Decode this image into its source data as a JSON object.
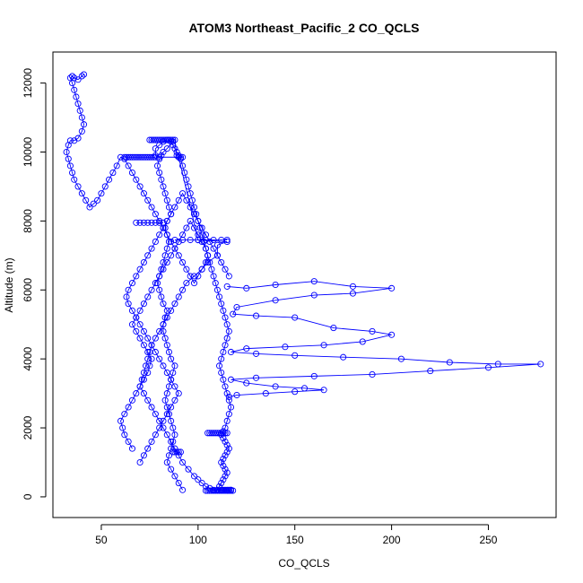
{
  "chart_data": {
    "type": "scatter",
    "title": "ATOM3 Northeast_Pacific_2 CO_QCLS",
    "xlabel": "CO_QCLS",
    "ylabel": "Altitude (m)",
    "xlim": [
      25,
      285
    ],
    "ylim": [
      -600,
      12900
    ],
    "xticks": [
      50,
      100,
      150,
      200,
      250
    ],
    "yticks": [
      0,
      2000,
      4000,
      6000,
      8000,
      10000,
      12000
    ],
    "grid": false,
    "legend": "none",
    "color": "#0000ff",
    "marker": "open-circle",
    "connected": true,
    "series": [
      {
        "x": [
          92,
          90,
          88,
          86,
          84,
          85,
          86,
          87,
          88,
          87,
          86,
          85,
          84,
          83,
          84,
          85,
          86,
          87,
          88,
          86,
          85,
          84,
          83,
          82,
          82,
          83,
          84,
          82,
          81,
          80,
          79,
          80,
          81,
          82,
          83,
          84,
          85,
          84,
          83,
          84,
          86,
          85,
          84,
          83,
          82,
          81,
          80,
          79,
          80,
          81,
          82,
          84,
          87,
          84,
          82,
          80,
          78,
          78,
          80,
          90,
          100,
          115,
          110,
          110,
          105,
          102,
          98,
          94,
          92,
          90,
          88,
          86,
          84,
          82,
          80,
          78,
          76,
          75,
          74,
          73,
          72,
          71,
          70,
          72,
          74,
          76,
          78,
          80,
          82,
          84,
          86,
          88,
          90,
          92,
          95,
          98,
          100,
          102,
          104,
          106,
          108,
          110,
          112,
          113,
          114,
          115,
          116,
          117,
          117
        ],
        "y": [
          200,
          400,
          600,
          800,
          1000,
          1200,
          1400,
          1600,
          1800,
          2000,
          2200,
          2400,
          2600,
          2800,
          3000,
          3200,
          3400,
          3600,
          3800,
          4000,
          4200,
          4400,
          4600,
          4800,
          5000,
          5200,
          5400,
          5600,
          5800,
          6000,
          6200,
          6400,
          6600,
          6800,
          7000,
          7200,
          7400,
          7600,
          7800,
          8000,
          8200,
          8400,
          8600,
          8800,
          9000,
          9200,
          9400,
          9600,
          9800,
          9900,
          10000,
          10100,
          10300,
          10350,
          10300,
          10200,
          10100,
          9900,
          9850,
          9850,
          7450,
          7400,
          7300,
          7000,
          6800,
          6600,
          6400,
          6200,
          6000,
          5800,
          5600,
          5400,
          5200,
          5000,
          4800,
          4600,
          4400,
          4200,
          4000,
          3800,
          3600,
          3400,
          3200,
          3000,
          2800,
          2600,
          2400,
          2200,
          2000,
          1800,
          1600,
          1400,
          1200,
          1000,
          800,
          600,
          500,
          400,
          300,
          250,
          200,
          200,
          200,
          200,
          200,
          200,
          200,
          200,
          200
        ]
      },
      {
        "x": [
          66,
          64,
          62,
          61,
          60,
          62,
          64,
          66,
          68,
          70,
          72,
          74,
          75,
          76,
          74,
          72,
          70,
          68,
          66,
          68,
          70,
          72,
          74,
          76,
          78,
          80,
          82,
          84,
          86,
          88,
          90,
          92,
          94,
          96,
          98,
          100,
          102,
          104,
          105,
          104,
          102,
          100,
          98,
          96,
          94,
          92,
          90,
          88,
          86,
          84,
          82,
          80,
          78,
          76,
          74,
          72,
          70,
          68,
          66,
          64,
          62,
          60,
          58,
          56,
          54,
          52,
          50,
          48,
          46,
          44,
          42,
          40,
          38,
          36,
          35,
          34,
          33,
          32,
          33,
          34,
          36,
          38,
          40,
          41,
          40,
          39,
          38,
          37,
          36,
          35,
          34,
          35,
          36,
          38,
          40,
          41
        ],
        "y": [
          1400,
          1600,
          1800,
          2000,
          2200,
          2400,
          2600,
          2800,
          3000,
          3200,
          3400,
          3600,
          3800,
          4000,
          4200,
          4400,
          4600,
          4800,
          5000,
          5200,
          5400,
          5600,
          5800,
          6000,
          6200,
          6400,
          6600,
          6800,
          7000,
          7200,
          7400,
          7600,
          7800,
          8000,
          7800,
          7600,
          7400,
          7200,
          7000,
          6800,
          6600,
          6400,
          6200,
          6400,
          6600,
          6800,
          7000,
          7200,
          7400,
          7600,
          7800,
          8000,
          8200,
          8400,
          8600,
          8800,
          9000,
          9200,
          9400,
          9600,
          9800,
          9850,
          9600,
          9400,
          9200,
          9000,
          8800,
          8600,
          8500,
          8400,
          8600,
          8800,
          9000,
          9200,
          9400,
          9600,
          9800,
          10000,
          10200,
          10330,
          10330,
          10400,
          10600,
          10800,
          11000,
          11200,
          11400,
          11600,
          11800,
          12000,
          12150,
          12200,
          12150,
          12100,
          12200,
          12250
        ]
      },
      {
        "x": [
          110,
          111,
          112,
          113,
          114,
          115,
          114,
          113,
          112,
          113,
          114,
          115,
          116,
          115,
          114,
          113,
          112,
          113,
          114,
          115,
          116,
          117,
          116,
          115,
          114,
          113,
          112,
          111,
          112,
          113,
          114,
          115,
          116,
          115,
          114,
          113,
          112,
          111,
          110,
          109,
          108,
          107,
          106,
          105,
          104,
          103,
          102,
          101,
          100,
          99,
          98,
          97,
          96,
          95,
          94,
          93,
          92,
          91,
          90,
          89,
          88,
          87,
          86,
          85
        ],
        "y": [
          200,
          300,
          400,
          500,
          600,
          700,
          800,
          900,
          1000,
          1100,
          1200,
          1300,
          1400,
          1500,
          1600,
          1700,
          1800,
          1900,
          2000,
          2200,
          2400,
          2600,
          2800,
          3000,
          3200,
          3400,
          3600,
          3800,
          4000,
          4200,
          4400,
          4600,
          4800,
          5000,
          5200,
          5400,
          5600,
          5800,
          6000,
          6200,
          6400,
          6600,
          6800,
          7000,
          7200,
          7400,
          7600,
          7800,
          8000,
          8200,
          8400,
          8600,
          8800,
          9000,
          9200,
          9400,
          9600,
          9800,
          9900,
          10000,
          10100,
          10200,
          10300,
          10350
        ]
      },
      {
        "x": [
          115,
          125,
          140,
          160,
          180,
          200,
          180,
          160,
          140,
          120,
          118,
          130,
          150,
          170,
          190,
          200,
          185,
          165,
          145,
          125,
          117,
          130,
          150,
          175,
          205,
          230,
          255,
          277,
          250,
          220,
          190,
          160,
          130,
          117,
          125,
          140,
          155,
          165,
          150,
          135,
          120,
          116
        ],
        "y": [
          6100,
          6050,
          6150,
          6250,
          6100,
          6050,
          5900,
          5850,
          5700,
          5500,
          5300,
          5250,
          5200,
          4900,
          4800,
          4700,
          4500,
          4400,
          4350,
          4300,
          4200,
          4150,
          4100,
          4050,
          4000,
          3900,
          3850,
          3850,
          3750,
          3650,
          3550,
          3500,
          3450,
          3400,
          3300,
          3200,
          3150,
          3100,
          3050,
          3000,
          2950,
          2900
        ]
      },
      {
        "x": [
          70,
          72,
          74,
          76,
          78,
          80,
          82,
          84,
          86,
          88,
          90,
          88,
          86,
          84,
          82,
          80,
          78,
          76,
          74,
          72,
          70,
          68,
          66,
          64,
          63,
          64,
          66,
          68,
          70,
          72,
          74,
          76,
          78,
          80,
          82,
          84,
          86,
          88,
          90,
          92,
          94,
          96,
          98,
          100,
          102,
          104,
          106,
          108,
          110,
          112,
          114,
          116
        ],
        "y": [
          1000,
          1200,
          1400,
          1600,
          1800,
          2000,
          2200,
          2400,
          2600,
          2800,
          3000,
          3200,
          3400,
          3600,
          3800,
          4000,
          4200,
          4400,
          4600,
          4800,
          5000,
          5200,
          5400,
          5600,
          5800,
          6000,
          6200,
          6400,
          6600,
          6800,
          7000,
          7200,
          7400,
          7600,
          7800,
          8000,
          8200,
          8400,
          8600,
          8800,
          8600,
          8400,
          8200,
          8000,
          7800,
          7600,
          7400,
          7200,
          7000,
          6800,
          6600,
          6400
        ]
      },
      {
        "x": [
          75,
          76,
          77,
          78,
          79,
          80,
          81,
          82,
          83,
          84,
          85,
          86,
          87,
          88,
          89,
          90,
          91,
          92
        ],
        "y": [
          10350,
          10350,
          10350,
          10350,
          10350,
          10350,
          10350,
          10350,
          10350,
          10350,
          10350,
          10350,
          10350,
          10350,
          9900,
          9850,
          9850,
          9850
        ]
      },
      {
        "x": [
          62,
          63,
          64,
          65,
          66,
          67,
          68,
          69,
          70,
          71,
          72,
          73,
          74,
          75,
          76,
          77,
          78
        ],
        "y": [
          9850,
          9850,
          9850,
          9850,
          9850,
          9850,
          9850,
          9850,
          9850,
          9850,
          9850,
          9850,
          9850,
          9850,
          9850,
          9850,
          9850
        ]
      },
      {
        "x": [
          104,
          105,
          106,
          107,
          108,
          109,
          110,
          111,
          112,
          113,
          114,
          115,
          116,
          117,
          118
        ],
        "y": [
          180,
          180,
          180,
          180,
          180,
          180,
          180,
          180,
          180,
          180,
          180,
          180,
          180,
          180,
          180
        ]
      },
      {
        "x": [
          105,
          106,
          107,
          108,
          109,
          110,
          111,
          112,
          113,
          114,
          115
        ],
        "y": [
          1850,
          1850,
          1850,
          1850,
          1850,
          1850,
          1850,
          1850,
          1850,
          1850,
          1850
        ]
      },
      {
        "x": [
          87,
          88,
          89,
          90,
          91
        ],
        "y": [
          1300,
          1300,
          1300,
          1300,
          1300
        ]
      },
      {
        "x": [
          68,
          70,
          72,
          74,
          76,
          78,
          80,
          82
        ],
        "y": [
          7950,
          7950,
          7950,
          7950,
          7950,
          7950,
          7950,
          7950
        ]
      },
      {
        "x": [
          88,
          92,
          96,
          100,
          104,
          108,
          112,
          115
        ],
        "y": [
          7450,
          7450,
          7450,
          7450,
          7450,
          7450,
          7450,
          7450
        ]
      }
    ]
  }
}
